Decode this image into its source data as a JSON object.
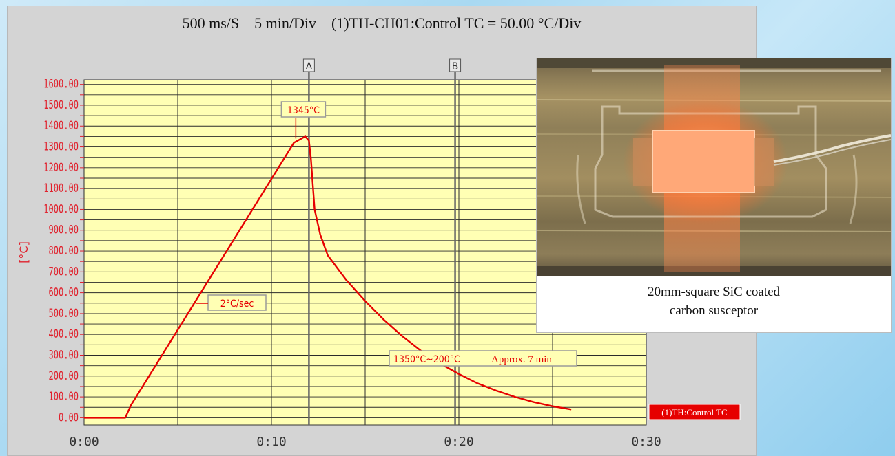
{
  "header": {
    "sample_rate": "500 ms/S",
    "time_div": "5 min/Div",
    "channel": "(1)TH-CH01:Control TC = 50.00 °C/Div"
  },
  "chart_data": {
    "type": "line",
    "title": "",
    "xlabel": "",
    "ylabel": "[°C]",
    "x_ticks": [
      "0:00",
      "0:10",
      "0:20",
      "0:30"
    ],
    "x_unit": "min",
    "xlim": [
      0,
      30
    ],
    "y_ticks": [
      "1600.00",
      "1500.00",
      "1400.00",
      "1300.00",
      "1200.00",
      "1100.00",
      "1000.00",
      "900.00",
      "800.00",
      "700.00",
      "600.00",
      "500.00",
      "400.00",
      "300.00",
      "200.00",
      "100.00",
      "0.00"
    ],
    "ylim": [
      -40,
      1600
    ],
    "grid": true,
    "background": "#ffffb4",
    "series": [
      {
        "name": "(1)TH:Control TC",
        "color": "#e60000",
        "x": [
          0,
          2.2,
          2.5,
          11.2,
          11.8,
          12.0,
          12.1,
          12.3,
          12.6,
          13.0,
          13.5,
          14.0,
          15.0,
          16.0,
          17.0,
          18.0,
          19.0,
          20.0,
          21.0,
          22.0,
          23.0,
          24.0,
          25.0,
          26.0
        ],
        "y": [
          0,
          0,
          60,
          1320,
          1350,
          1330,
          1250,
          1000,
          880,
          780,
          720,
          660,
          560,
          470,
          390,
          320,
          260,
          210,
          165,
          130,
          100,
          75,
          55,
          40
        ]
      }
    ],
    "cursors": [
      {
        "label": "A",
        "x": 12.0
      },
      {
        "label": "B",
        "x": 19.8
      }
    ],
    "annotations": [
      {
        "text": "1345°C",
        "x": 12.0,
        "y": 1345
      },
      {
        "text": "2°C/sec",
        "x": 6.5,
        "y": 560
      },
      {
        "text": "1350°C~200°C",
        "x": 18.5,
        "y": 270
      },
      {
        "text": "Approx. 7 min",
        "x": 22.6,
        "y": 270
      }
    ],
    "legend": {
      "label": "(1)TH:Control TC",
      "placement": "bottom-right"
    }
  },
  "colors": {
    "line": "#e60000",
    "axis_text": "#e0202c",
    "plot_bg": "#ffffb4",
    "panel_bg": "#d4d4d4"
  },
  "photo": {
    "caption_line1": "20mm-square SiC coated",
    "caption_line2": "carbon susceptor"
  }
}
